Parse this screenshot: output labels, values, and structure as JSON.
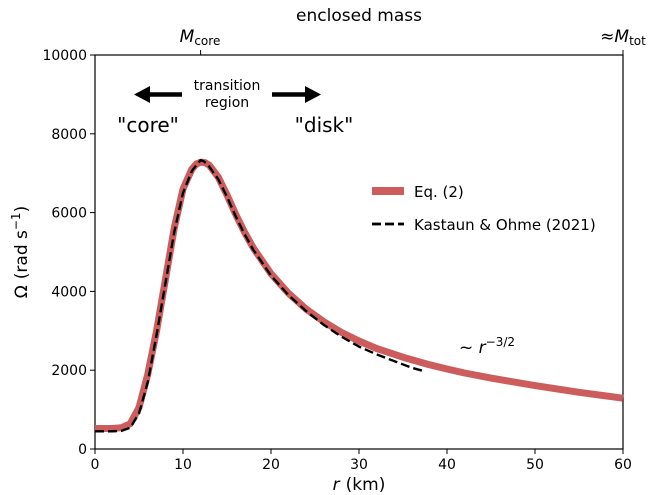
{
  "chart_data": {
    "type": "line",
    "top_label": "enclosed mass",
    "top_ticks": [
      {
        "x": 12,
        "label_main": "M",
        "label_sub": "core",
        "prefix": ""
      },
      {
        "x": 60,
        "label_main": "M",
        "label_sub": "tot",
        "prefix": "≈"
      }
    ],
    "xlabel": {
      "symbol": "r",
      "unit": "(km)"
    },
    "ylabel": {
      "symbol": "Ω",
      "unit_prefix": "(rad s",
      "unit_sup": "−1",
      "unit_suffix": ")"
    },
    "xlim": [
      0,
      60
    ],
    "ylim": [
      0,
      10000
    ],
    "xticks": [
      0,
      10,
      20,
      30,
      40,
      50,
      60
    ],
    "yticks": [
      0,
      2000,
      4000,
      6000,
      8000,
      10000
    ],
    "annotations": {
      "core": "\"core\"",
      "disk": "\"disk\"",
      "transition_line1": "transition",
      "transition_line2": "region",
      "power_law_prefix": "~ r",
      "power_law_exp": "−3/2"
    },
    "series": [
      {
        "name": "Eq. (2)",
        "color": "#cd5c5c",
        "style": "solid",
        "x": [
          0,
          2,
          3,
          4,
          5,
          6,
          7,
          8,
          9,
          10,
          11,
          11.5,
          12,
          12.5,
          13,
          14,
          15,
          16,
          17,
          18,
          20,
          22,
          24,
          26,
          28,
          30,
          32,
          35,
          38,
          40,
          42,
          45,
          50,
          55,
          60
        ],
        "y": [
          520,
          520,
          540,
          640,
          1050,
          1900,
          3000,
          4300,
          5600,
          6600,
          7100,
          7230,
          7280,
          7270,
          7200,
          6900,
          6450,
          5950,
          5500,
          5100,
          4450,
          3950,
          3550,
          3230,
          2960,
          2740,
          2550,
          2330,
          2140,
          2030,
          1930,
          1800,
          1610,
          1440,
          1290
        ]
      },
      {
        "name": "Kastaun & Ohme (2021)",
        "color": "#000000",
        "style": "dashed",
        "x": [
          0,
          2,
          3,
          4,
          5,
          6,
          7,
          8,
          9,
          10,
          11,
          11.5,
          12,
          12.3,
          12.8,
          13.5,
          14,
          15,
          16,
          17,
          18,
          20,
          22,
          24,
          26,
          28,
          30,
          32,
          34,
          36,
          37.5
        ],
        "y": [
          450,
          450,
          460,
          540,
          900,
          1700,
          2900,
          4200,
          5500,
          6500,
          7050,
          7200,
          7330,
          7310,
          7230,
          7000,
          6850,
          6400,
          5900,
          5450,
          5050,
          4400,
          3900,
          3500,
          3150,
          2850,
          2600,
          2400,
          2230,
          2060,
          1970
        ]
      }
    ],
    "legend_position": "center-right"
  }
}
